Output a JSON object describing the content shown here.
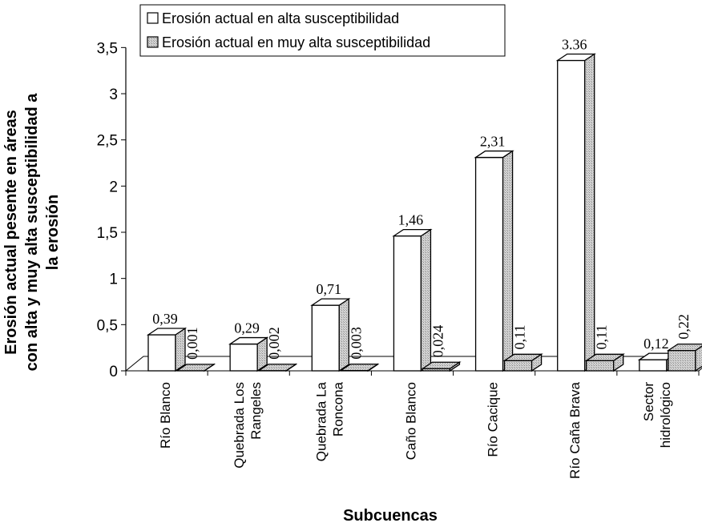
{
  "chart_data": {
    "type": "bar",
    "categories": [
      [
        "Río Blanco"
      ],
      [
        "Quebrada Los",
        "Rangeles"
      ],
      [
        "Quebrada La",
        "Roncona"
      ],
      [
        "Caño Blanco"
      ],
      [
        "Río Cacique"
      ],
      [
        "Río Caña Brava"
      ],
      [
        "Sector",
        "hidrológico"
      ]
    ],
    "series": [
      {
        "name": "Erosión actual en alta susceptibilidad",
        "values": [
          0.39,
          0.29,
          0.71,
          1.46,
          2.31,
          3.36,
          0.12
        ],
        "labels": [
          "0,39",
          "0,29",
          "0,71",
          "1,46",
          "2,31",
          "3.36",
          "0,12"
        ],
        "fill": "#ffffff"
      },
      {
        "name": "Erosión actual en muy alta susceptibilidad",
        "values": [
          0.001,
          0.002,
          0.003,
          0.024,
          0.11,
          0.11,
          0.22
        ],
        "labels": [
          "0,001",
          "0,002",
          "0,003",
          "0,024",
          "0,11",
          "0,11",
          "0,22"
        ],
        "fill": "#d2d2d2"
      }
    ],
    "xlabel": "Subcuencas",
    "ylabel": [
      "Erosión actual pesente en áreas",
      "con alta y muy alta susceptibilidad a",
      "la erosión"
    ],
    "ylim": [
      0,
      3.5
    ],
    "yticks": [
      "0",
      "0,5",
      "1",
      "1,5",
      "2",
      "2,5",
      "3",
      "3,5"
    ],
    "legend_position": "top-center",
    "grid": false
  }
}
